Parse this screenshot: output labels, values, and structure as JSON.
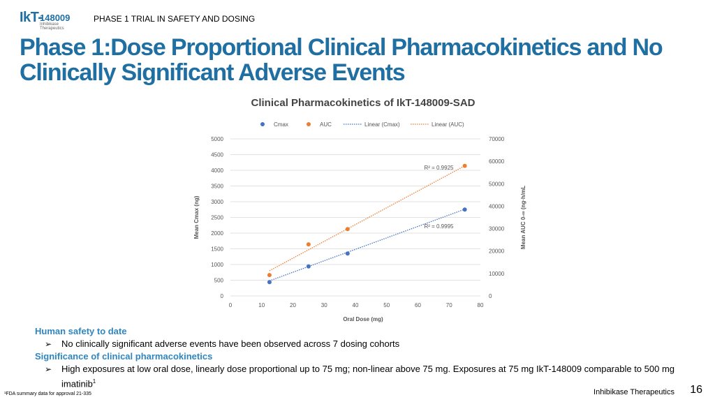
{
  "header": {
    "logo_main": "IkT-",
    "logo_number": "148009",
    "logo_sub": "Inhibikase Therapeutics",
    "phase_label": "PHASE 1 TRIAL IN SAFETY AND DOSING",
    "title": "Phase 1:Dose Proportional Clinical Pharmacokinetics and No Clinically Significant Adverse Events"
  },
  "colors": {
    "brand_blue": "#1f6fa2",
    "section_blue": "#2f85bf",
    "cmax_series": "#4472c4",
    "auc_series": "#ed7d31"
  },
  "chart_data": {
    "type": "scatter",
    "title": "Clinical Pharmacokinetics of IkT-148009-SAD",
    "xlabel": "Oral Dose (mg)",
    "ylabel": "Mean Cmax (ng)",
    "y2label": "Mean AUC 0-∞ (ng·h/mL",
    "xlim": [
      0,
      80
    ],
    "ylim": [
      0,
      5000
    ],
    "y2lim": [
      0,
      70000
    ],
    "x_ticks": [
      "0",
      "10",
      "20",
      "30",
      "40",
      "50",
      "60",
      "70",
      "80"
    ],
    "y_ticks": [
      "0",
      "500",
      "1000",
      "1500",
      "2000",
      "2500",
      "3000",
      "3500",
      "4000",
      "4500",
      "5000"
    ],
    "y2_ticks": [
      "0",
      "10000",
      "20000",
      "30000",
      "40000",
      "50000",
      "60000",
      "70000"
    ],
    "grid": true,
    "legend_position": "top",
    "legend": [
      "Cmax",
      "AUC",
      "Linear (Cmax)",
      "Linear (AUC)"
    ],
    "series": [
      {
        "name": "Cmax",
        "axis": "left",
        "x": [
          12.5,
          25,
          37.5,
          75
        ],
        "y": [
          440,
          940,
          1350,
          2750
        ]
      },
      {
        "name": "AUC",
        "axis": "right",
        "x": [
          12.5,
          25,
          37.5,
          75
        ],
        "y": [
          9300,
          23000,
          29800,
          58000
        ]
      }
    ],
    "trendlines": [
      {
        "name": "Linear (Cmax)",
        "axis": "left",
        "x": [
          12.5,
          75
        ],
        "y": [
          480,
          2760
        ],
        "r2_label": "R² = 0.9995"
      },
      {
        "name": "Linear (AUC)",
        "axis": "right",
        "x": [
          12.5,
          75
        ],
        "y": [
          11200,
          58000
        ],
        "r2_label": "R² = 0.9925"
      }
    ]
  },
  "body": {
    "section1_head": "Human safety to date",
    "bullet1": "No clinically significant adverse events have been observed across 7 dosing cohorts",
    "section2_head": "Significance of clinical pharmacokinetics",
    "bullet2": "High exposures at low oral dose, linearly dose proportional up to 75 mg; non-linear above 75 mg.  Exposures at 75 mg IkT-148009 comparable to 500 mg imatinib",
    "bullet2_sup": "1",
    "bullet_mark": "➢"
  },
  "footer": {
    "footnote": "¹FDA summary data for approval 21-335",
    "brand": "Inhibikase Therapeutics",
    "page_number": "16"
  }
}
